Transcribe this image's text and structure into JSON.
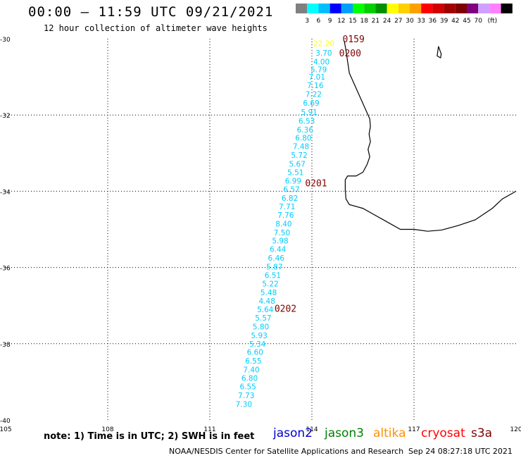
{
  "title": "00:00 – 11:59 UTC 09/21/2021",
  "subtitle": "12 hour collection of altimeter wave heights",
  "scale": {
    "colors": [
      "#808080",
      "#00ffff",
      "#00bfff",
      "#0000ff",
      "#00a0ff",
      "#00ff00",
      "#00d000",
      "#009000",
      "#ffff00",
      "#ffd000",
      "#ffa000",
      "#ff0000",
      "#d00000",
      "#a00000",
      "#800000",
      "#800080",
      "#d0a0ff",
      "#ff80ff",
      "#000000"
    ],
    "labels": [
      "3",
      "6",
      "9",
      "12",
      "15",
      "18",
      "21",
      "24",
      "27",
      "30",
      "33",
      "36",
      "39",
      "42",
      "45",
      "70"
    ],
    "unit": "(ft)"
  },
  "axes": {
    "x_ticks": [
      "105",
      "108",
      "111",
      "114",
      "117",
      "120"
    ],
    "y_ticks": [
      "-30",
      "-32",
      "-34",
      "-36",
      "-38",
      "-40"
    ]
  },
  "wave_points": [
    {
      "lat": -30.12,
      "lon": 114.35,
      "v": "22.20",
      "c": "#ffff00"
    },
    {
      "lat": -30.37,
      "lon": 114.35,
      "v": "3.70",
      "c": "#00ccff"
    },
    {
      "lat": -30.6,
      "lon": 114.28,
      "v": "4.00",
      "c": "#00ccff"
    },
    {
      "lat": -30.8,
      "lon": 114.2,
      "v": "5.79",
      "c": "#00ccff"
    },
    {
      "lat": -31.0,
      "lon": 114.15,
      "v": "7.01",
      "c": "#00ccff"
    },
    {
      "lat": -31.22,
      "lon": 114.1,
      "v": "7.16",
      "c": "#00ccff"
    },
    {
      "lat": -31.45,
      "lon": 114.05,
      "v": "7.22",
      "c": "#00ccff"
    },
    {
      "lat": -31.68,
      "lon": 113.98,
      "v": "6.69",
      "c": "#00ccff"
    },
    {
      "lat": -31.92,
      "lon": 113.92,
      "v": "5.91",
      "c": "#00ccff"
    },
    {
      "lat": -32.15,
      "lon": 113.85,
      "v": "6.53",
      "c": "#00ccff"
    },
    {
      "lat": -32.38,
      "lon": 113.8,
      "v": "6.36",
      "c": "#00ccff"
    },
    {
      "lat": -32.6,
      "lon": 113.75,
      "v": "6.80",
      "c": "#00ccff"
    },
    {
      "lat": -32.82,
      "lon": 113.68,
      "v": "7.48",
      "c": "#00ccff"
    },
    {
      "lat": -33.05,
      "lon": 113.63,
      "v": "5.72",
      "c": "#00ccff"
    },
    {
      "lat": -33.28,
      "lon": 113.57,
      "v": "5.67",
      "c": "#00ccff"
    },
    {
      "lat": -33.5,
      "lon": 113.52,
      "v": "5.51",
      "c": "#00ccff"
    },
    {
      "lat": -33.72,
      "lon": 113.45,
      "v": "6.99",
      "c": "#00ccff"
    },
    {
      "lat": -33.95,
      "lon": 113.4,
      "v": "6.57",
      "c": "#00ccff"
    },
    {
      "lat": -34.18,
      "lon": 113.35,
      "v": "6.82",
      "c": "#00ccff"
    },
    {
      "lat": -34.4,
      "lon": 113.27,
      "v": "7.71",
      "c": "#00ccff"
    },
    {
      "lat": -34.62,
      "lon": 113.23,
      "v": "7.76",
      "c": "#00ccff"
    },
    {
      "lat": -34.85,
      "lon": 113.17,
      "v": "8.40",
      "c": "#00ccff"
    },
    {
      "lat": -35.08,
      "lon": 113.12,
      "v": "7.50",
      "c": "#00ccff"
    },
    {
      "lat": -35.3,
      "lon": 113.07,
      "v": "5.98",
      "c": "#00ccff"
    },
    {
      "lat": -35.52,
      "lon": 113.0,
      "v": "6.44",
      "c": "#00ccff"
    },
    {
      "lat": -35.75,
      "lon": 112.95,
      "v": "6.46",
      "c": "#00ccff"
    },
    {
      "lat": -35.98,
      "lon": 112.9,
      "v": "5.87",
      "c": "#00ccff"
    },
    {
      "lat": -36.2,
      "lon": 112.85,
      "v": "6.51",
      "c": "#00ccff"
    },
    {
      "lat": -36.42,
      "lon": 112.78,
      "v": "5.22",
      "c": "#00ccff"
    },
    {
      "lat": -36.65,
      "lon": 112.73,
      "v": "5.48",
      "c": "#00ccff"
    },
    {
      "lat": -36.88,
      "lon": 112.68,
      "v": "4.48",
      "c": "#00ccff"
    },
    {
      "lat": -37.1,
      "lon": 112.63,
      "v": "5.64",
      "c": "#00ccff"
    },
    {
      "lat": -37.32,
      "lon": 112.57,
      "v": "5.57",
      "c": "#00ccff"
    },
    {
      "lat": -37.55,
      "lon": 112.5,
      "v": "5.80",
      "c": "#00ccff"
    },
    {
      "lat": -37.78,
      "lon": 112.45,
      "v": "5.93",
      "c": "#00ccff"
    },
    {
      "lat": -38.0,
      "lon": 112.4,
      "v": "5.34",
      "c": "#00ccff"
    },
    {
      "lat": -38.22,
      "lon": 112.33,
      "v": "6.60",
      "c": "#00ccff"
    },
    {
      "lat": -38.45,
      "lon": 112.28,
      "v": "6.55",
      "c": "#00ccff"
    },
    {
      "lat": -38.68,
      "lon": 112.22,
      "v": "7.40",
      "c": "#00ccff"
    },
    {
      "lat": -38.9,
      "lon": 112.17,
      "v": "6.80",
      "c": "#00ccff"
    },
    {
      "lat": -39.12,
      "lon": 112.12,
      "v": "6.55",
      "c": "#00ccff"
    },
    {
      "lat": -39.35,
      "lon": 112.07,
      "v": "7.73",
      "c": "#00ccff"
    },
    {
      "lat": -39.58,
      "lon": 112.0,
      "v": "7.30",
      "c": "#00ccff"
    }
  ],
  "time_labels": [
    {
      "lat": -30.0,
      "lon": 114.9,
      "t": "0159"
    },
    {
      "lat": -30.37,
      "lon": 114.8,
      "t": "0200"
    },
    {
      "lat": -33.78,
      "lon": 113.8,
      "t": "0201"
    },
    {
      "lat": -37.07,
      "lon": 112.9,
      "t": "0202"
    }
  ],
  "coastline": [
    [
      -30.05,
      114.95
    ],
    [
      -30.3,
      115.0
    ],
    [
      -30.6,
      115.05
    ],
    [
      -30.9,
      115.1
    ],
    [
      -31.2,
      115.25
    ],
    [
      -31.5,
      115.4
    ],
    [
      -31.8,
      115.55
    ],
    [
      -32.1,
      115.7
    ],
    [
      -32.3,
      115.72
    ],
    [
      -32.5,
      115.68
    ],
    [
      -32.7,
      115.72
    ],
    [
      -32.9,
      115.65
    ],
    [
      -33.1,
      115.7
    ],
    [
      -33.3,
      115.62
    ],
    [
      -33.5,
      115.5
    ],
    [
      -33.6,
      115.3
    ],
    [
      -33.6,
      115.05
    ],
    [
      -33.7,
      114.98
    ],
    [
      -33.95,
      114.98
    ],
    [
      -34.2,
      115.0
    ],
    [
      -34.35,
      115.1
    ],
    [
      -34.45,
      115.5
    ],
    [
      -34.6,
      115.8
    ],
    [
      -34.8,
      116.2
    ],
    [
      -35.0,
      116.6
    ],
    [
      -35.0,
      117.0
    ],
    [
      -35.05,
      117.4
    ],
    [
      -35.02,
      117.8
    ],
    [
      -34.9,
      118.3
    ],
    [
      -34.75,
      118.8
    ],
    [
      -34.45,
      119.3
    ],
    [
      -34.2,
      119.6
    ],
    [
      -34.0,
      120.0
    ]
  ],
  "island": [
    [
      -30.2,
      117.72
    ],
    [
      -30.45,
      117.68
    ],
    [
      -30.5,
      117.78
    ],
    [
      -30.4,
      117.8
    ],
    [
      -30.2,
      117.72
    ]
  ],
  "note": "note: 1) Time is in UTC; 2) SWH is in feet",
  "satellites": [
    {
      "name": "jason2",
      "color": "#0000d0"
    },
    {
      "name": "jason3",
      "color": "#008000"
    },
    {
      "name": "altika",
      "color": "#ff9000"
    },
    {
      "name": "cryosat",
      "color": "#ff0000"
    },
    {
      "name": "s3a",
      "color": "#800000"
    }
  ],
  "footer": "NOAA/NESDIS Center for Satellite Applications and Research",
  "timestamp": "Sep 24 08:27:18 UTC 2021"
}
